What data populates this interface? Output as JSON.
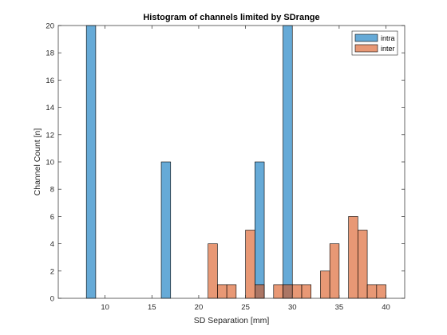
{
  "chart_data": {
    "type": "bar",
    "title": "Histogram of channels limited by SDrange",
    "xlabel": "SD Separation [mm]",
    "ylabel": "Channel Count [n]",
    "xlim": [
      5,
      42
    ],
    "ylim": [
      0,
      20
    ],
    "xticks": [
      10,
      15,
      20,
      25,
      30,
      35,
      40
    ],
    "yticks": [
      0,
      2,
      4,
      6,
      8,
      10,
      12,
      14,
      16,
      18,
      20
    ],
    "bin_width": 1,
    "grid": false,
    "legend_position": "top-right",
    "series": [
      {
        "name": "intra",
        "color": "#0072BD",
        "bins": [
          {
            "x0": 8,
            "x1": 9,
            "count": 20
          },
          {
            "x0": 16,
            "x1": 17,
            "count": 10
          },
          {
            "x0": 26,
            "x1": 27,
            "count": 10
          },
          {
            "x0": 29,
            "x1": 30,
            "count": 20
          }
        ]
      },
      {
        "name": "inter",
        "color": "#D95319",
        "bins": [
          {
            "x0": 21,
            "x1": 22,
            "count": 4
          },
          {
            "x0": 22,
            "x1": 23,
            "count": 1
          },
          {
            "x0": 23,
            "x1": 24,
            "count": 1
          },
          {
            "x0": 25,
            "x1": 26,
            "count": 5
          },
          {
            "x0": 26,
            "x1": 27,
            "count": 1
          },
          {
            "x0": 28,
            "x1": 29,
            "count": 1
          },
          {
            "x0": 29,
            "x1": 30,
            "count": 1
          },
          {
            "x0": 30,
            "x1": 31,
            "count": 1
          },
          {
            "x0": 31,
            "x1": 32,
            "count": 1
          },
          {
            "x0": 33,
            "x1": 34,
            "count": 2
          },
          {
            "x0": 34,
            "x1": 35,
            "count": 4
          },
          {
            "x0": 36,
            "x1": 37,
            "count": 6
          },
          {
            "x0": 37,
            "x1": 38,
            "count": 5
          },
          {
            "x0": 38,
            "x1": 39,
            "count": 1
          },
          {
            "x0": 39,
            "x1": 40,
            "count": 1
          }
        ]
      }
    ]
  }
}
